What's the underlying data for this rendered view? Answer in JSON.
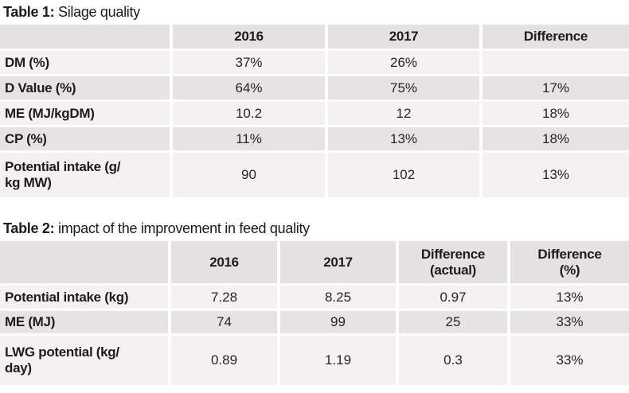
{
  "tables": [
    {
      "title_prefix": "Table 1:",
      "title_text": "Silage quality",
      "columns": [
        "",
        "2016",
        "2017",
        "Difference"
      ],
      "rows": [
        {
          "label": "DM (%)",
          "values": [
            "37%",
            "26%",
            ""
          ]
        },
        {
          "label": "D Value (%)",
          "values": [
            "64%",
            "75%",
            "17%"
          ]
        },
        {
          "label": "ME (MJ/kgDM)",
          "values": [
            "10.2",
            "12",
            "18%"
          ]
        },
        {
          "label": "CP (%)",
          "values": [
            "11%",
            "13%",
            "18%"
          ]
        },
        {
          "label": "Potential intake (g/\nkg MW)",
          "values": [
            "90",
            "102",
            "13%"
          ]
        }
      ]
    },
    {
      "title_prefix": "Table 2:",
      "title_text": "impact of the improvement in feed quality",
      "columns": [
        "",
        "2016",
        "2017",
        "Difference\n(actual)",
        "Difference\n(%)"
      ],
      "rows": [
        {
          "label": "Potential intake (kg)",
          "values": [
            "7.28",
            "8.25",
            "0.97",
            "13%"
          ]
        },
        {
          "label": "ME (MJ)",
          "values": [
            "74",
            "99",
            "25",
            "33%"
          ]
        },
        {
          "label": "LWG potential (kg/\nday)",
          "values": [
            "0.89",
            "1.19",
            "0.3",
            "33%"
          ]
        }
      ]
    }
  ],
  "colors": {
    "header_bg": "#e3e2e0",
    "row_gray": "#e5e4e2",
    "row_light": "#f3f2f0",
    "text": "#1d1c1a",
    "separator": "#ffffff"
  }
}
